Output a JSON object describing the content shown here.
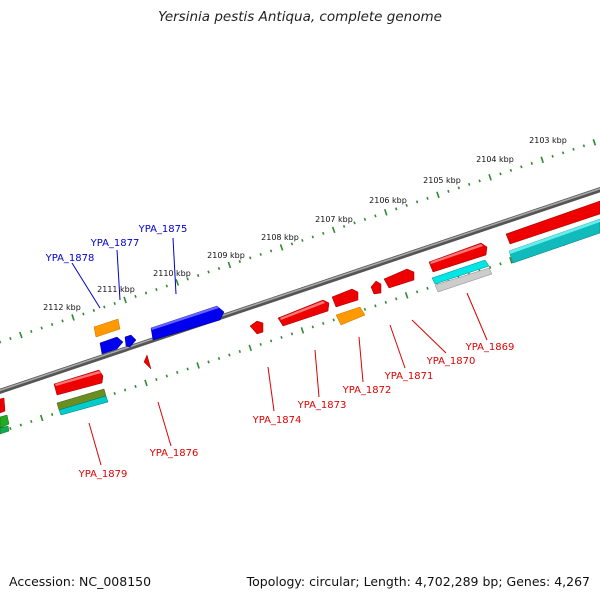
{
  "title": "Yersinia pestis Antiqua, complete genome",
  "accession": "Accession: NC_008150",
  "summary": "Topology: circular; Length: 4,702,289 bp; Genes: 4,267",
  "colors": {
    "backbone": "#7f7f7f",
    "tick": "#2e8b2e",
    "forward_label": "#0000cc",
    "reverse_label": "#dd0000",
    "red": "#ee0000",
    "blue": "#0000ee",
    "orange": "#ff9900",
    "cyan": "#00cccc",
    "teal": "#11aaaa",
    "olive": "#6b8e23",
    "green": "#22aa22",
    "gray": "#c8c8c8"
  },
  "kbp_ticks": [
    "2103 kbp",
    "2104 kbp",
    "2105 kbp",
    "2106 kbp",
    "2107 kbp",
    "2108 kbp",
    "2109 kbp",
    "2110 kbp",
    "2111 kbp",
    "2112 kbp"
  ],
  "genes_forward": [
    "YPA_1875",
    "YPA_1877",
    "YPA_1878"
  ],
  "genes_reverse": [
    "YPA_1869",
    "YPA_1870",
    "YPA_1871",
    "YPA_1872",
    "YPA_1873",
    "YPA_1874",
    "YPA_1876",
    "YPA_1879"
  ]
}
